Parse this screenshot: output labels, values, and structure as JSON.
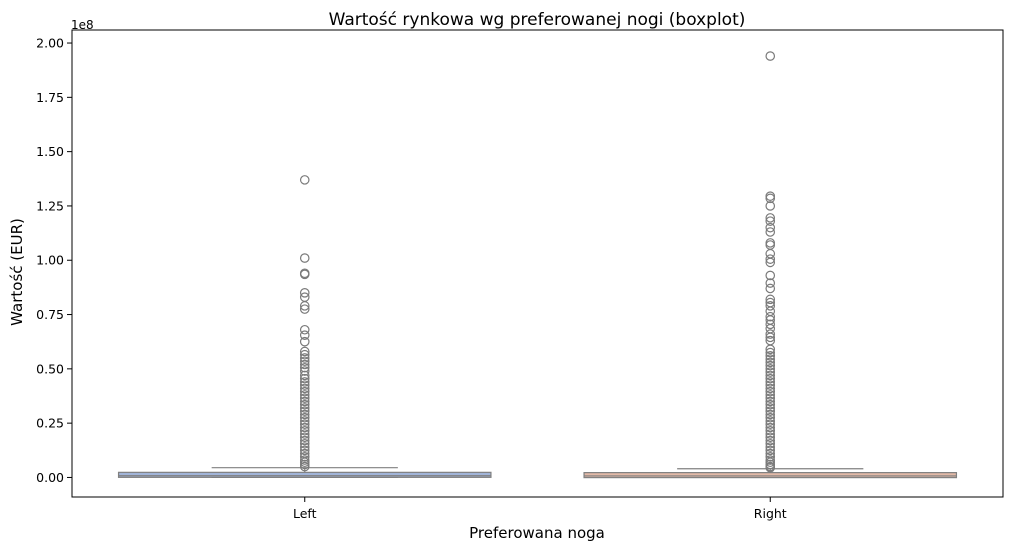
{
  "chart_data": {
    "type": "boxplot",
    "title": "Wartość rynkowa wg preferowanej nogi (boxplot)",
    "xlabel": "Preferowana noga",
    "ylabel": "Wartość (EUR)",
    "y_offset_label": "1e8",
    "ylim": [
      -9000000,
      206000000
    ],
    "yticks": [
      0,
      25000000,
      50000000,
      75000000,
      100000000,
      125000000,
      150000000,
      175000000,
      200000000
    ],
    "ytick_labels": [
      "0.00",
      "0.25",
      "0.50",
      "0.75",
      "1.00",
      "1.25",
      "1.50",
      "1.75",
      "2.00"
    ],
    "grid": false,
    "categories": [
      "Left",
      "Right"
    ],
    "boxes": [
      {
        "category": "Left",
        "color": "#a1b4d8",
        "min": 10000,
        "q1": 400000,
        "median": 800000,
        "q3": 2000000,
        "whisker_high": 4500000,
        "outliers": [
          137000000,
          101000000,
          94000000,
          93500000,
          85000000,
          83000000,
          79000000,
          77500000,
          68000000,
          65500000,
          62500000,
          58000000,
          56500000,
          55000000,
          53500000,
          52000000,
          50500000,
          49000000,
          47000000,
          45500000,
          44000000,
          42500000,
          41000000,
          39500000,
          38000000,
          36500000,
          35000000,
          33500000,
          32000000,
          30500000,
          29000000,
          27500000,
          26000000,
          24500000,
          23000000,
          21500000,
          20000000,
          18500000,
          17000000,
          15500000,
          14000000,
          12500000,
          11000000,
          9500000,
          8000000,
          7000000,
          6000000,
          5000000
        ]
      },
      {
        "category": "Right",
        "color": "#e2b9a7",
        "min": 10000,
        "q1": 350000,
        "median": 700000,
        "q3": 1800000,
        "whisker_high": 4000000,
        "outliers": [
          194000000,
          129500000,
          128500000,
          125000000,
          119500000,
          118000000,
          115000000,
          113000000,
          108000000,
          107000000,
          103000000,
          100500000,
          99000000,
          93000000,
          89500000,
          87000000,
          82000000,
          80500000,
          79000000,
          76500000,
          74000000,
          72500000,
          70500000,
          68500000,
          66000000,
          64500000,
          63000000,
          59000000,
          57500000,
          56000000,
          54500000,
          53000000,
          51500000,
          50000000,
          48500000,
          47000000,
          45500000,
          44000000,
          42500000,
          41000000,
          39500000,
          38000000,
          36500000,
          35000000,
          33500000,
          32000000,
          30500000,
          29000000,
          27500000,
          26000000,
          24500000,
          23000000,
          21500000,
          20000000,
          18500000,
          17000000,
          15500000,
          14000000,
          12500000,
          11000000,
          9500000,
          8000000,
          7000000,
          6000000,
          5000000,
          4500000
        ]
      }
    ],
    "outlier_color": "#7a7a7a",
    "line_color": "#808080"
  }
}
